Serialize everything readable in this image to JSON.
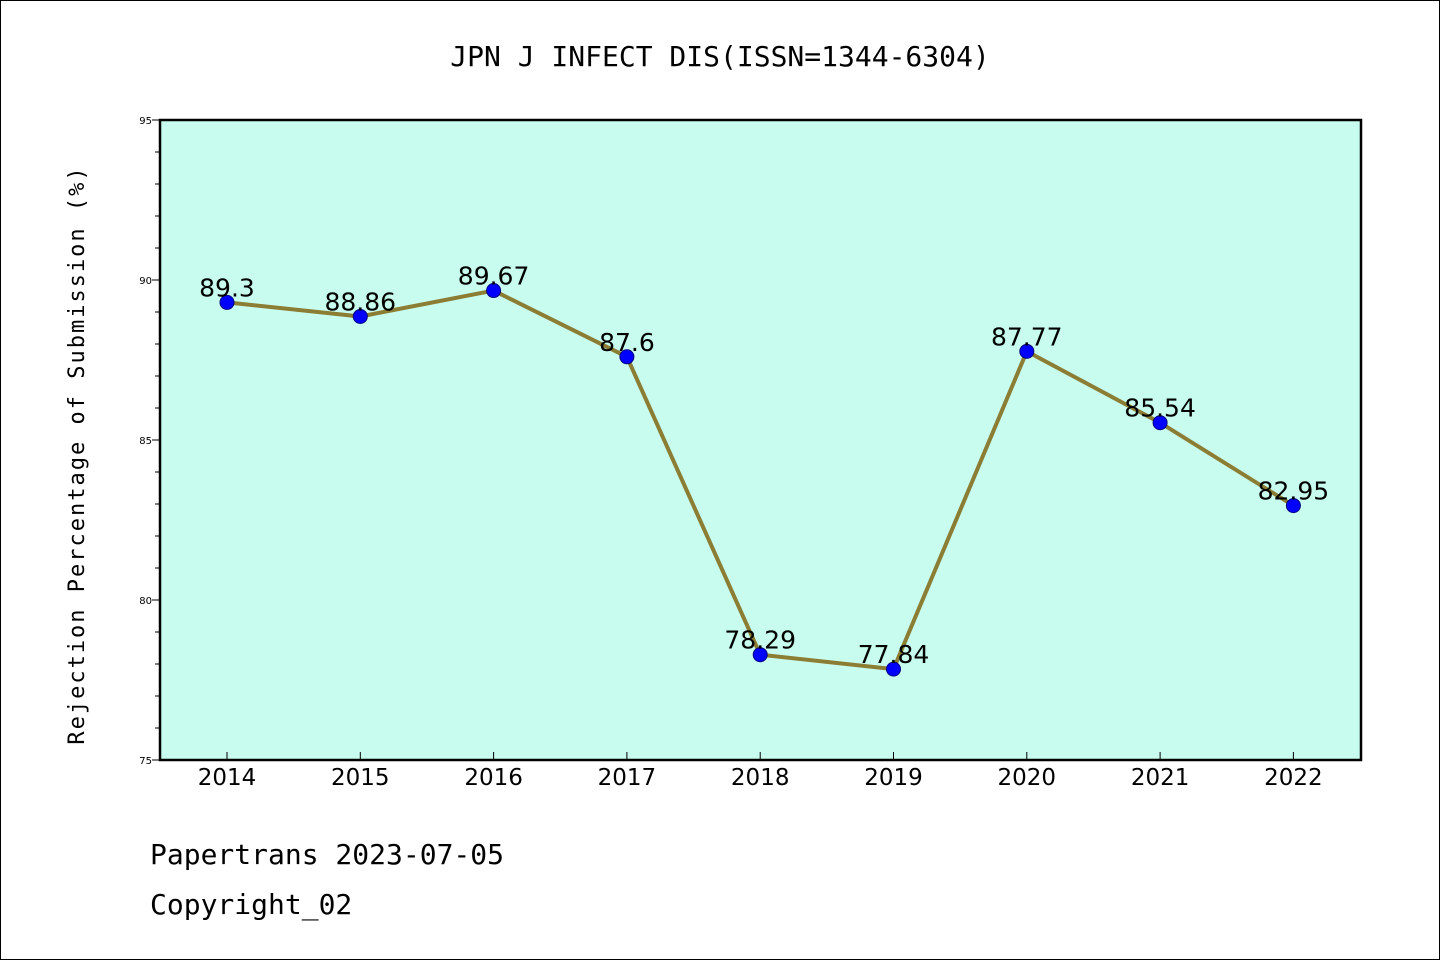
{
  "chart_data": {
    "type": "line",
    "title": "JPN J INFECT DIS(ISSN=1344-6304)",
    "xlabel": "",
    "ylabel": "Rejection Percentage of Submission (%)",
    "categories": [
      "2014",
      "2015",
      "2016",
      "2017",
      "2018",
      "2019",
      "2020",
      "2021",
      "2022"
    ],
    "series": [
      {
        "values": [
          89.3,
          88.86,
          89.67,
          87.6,
          78.29,
          77.84,
          87.77,
          85.54,
          82.95
        ],
        "labels": [
          "89.3",
          "88.86",
          "89.67",
          "87.6",
          "78.29",
          "77.84",
          "87.77",
          "85.54",
          "82.95"
        ]
      }
    ],
    "ylim": [
      75,
      95
    ],
    "yticks": [
      "75",
      "80",
      "85",
      "90",
      "95"
    ],
    "grid": false,
    "legend": "none",
    "colors": {
      "plot_background": "#c8fcee",
      "line": "#8b7d33",
      "marker": "#0000ff",
      "marker_edge": "#000080"
    }
  },
  "footer": {
    "line1": "Papertrans 2023-07-05",
    "line2": "Copyright_02"
  }
}
